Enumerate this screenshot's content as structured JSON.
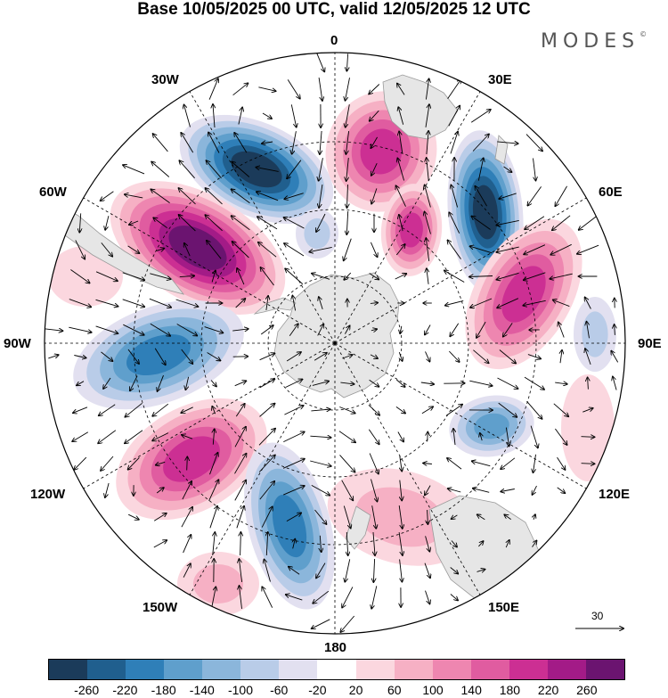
{
  "title": "Base 10/05/2025 00 UTC, valid 12/05/2025 12 UTC",
  "brand": {
    "name": "MODES",
    "mark": "©"
  },
  "longitude_labels": {
    "lon_0": "0",
    "lon_30e": "30E",
    "lon_60e": "60E",
    "lon_90e": "90E",
    "lon_120e": "120E",
    "lon_150e": "150E",
    "lon_180": "180",
    "lon_150w": "150W",
    "lon_120w": "120W",
    "lon_90w": "90W",
    "lon_60w": "60W",
    "lon_30w": "30W"
  },
  "reference_vector": {
    "label": "30"
  },
  "colorbar": {
    "colors": [
      "#1b3b5a",
      "#205f8e",
      "#2f7fb8",
      "#5f9fcc",
      "#8bb6db",
      "#b9cce8",
      "#e2e0f0",
      "#ffffff",
      "#fbd7df",
      "#f6b0c4",
      "#ee86b0",
      "#e05ca0",
      "#cc2f93",
      "#a31b87",
      "#6b1470"
    ],
    "labels": [
      "-260",
      "-220",
      "-180",
      "-140",
      "-100",
      "-60",
      "-20",
      "20",
      "60",
      "100",
      "140",
      "180",
      "220",
      "260"
    ]
  },
  "map_colors": {
    "land": "#e6e6e6",
    "coast": "#9a9a9a",
    "grid": "#000000",
    "blue_levels": [
      "#e2e0f0",
      "#b9cce8",
      "#8bb6db",
      "#5f9fcc",
      "#2f7fb8",
      "#205f8e",
      "#1b3b5a"
    ],
    "pink_levels": [
      "#fbd7df",
      "#f6b0c4",
      "#ee86b0",
      "#e05ca0",
      "#cc2f93",
      "#a31b87",
      "#6b1470"
    ]
  }
}
